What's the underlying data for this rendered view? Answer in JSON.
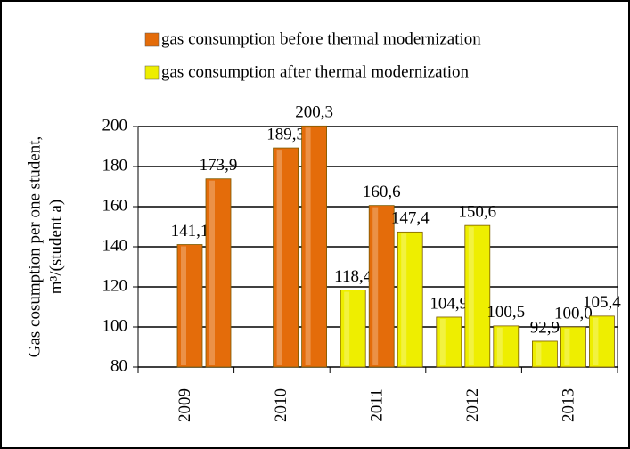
{
  "chart_data": {
    "type": "bar",
    "y_label": [
      "Gas cosumption per one student,",
      "m³/(student a)"
    ],
    "legend": [
      {
        "name": "gas consumption before thermal modernization",
        "color": "#e46c0a"
      },
      {
        "name": "gas consumption after thermal modernization",
        "color": "#eeee00"
      }
    ],
    "categories": [
      "2009",
      "2010",
      "2011",
      "2012",
      "2013"
    ],
    "values": [
      [
        null,
        141.1,
        173.9
      ],
      [
        null,
        189.3,
        200.3
      ],
      [
        118.4,
        160.6,
        147.4
      ],
      [
        104.9,
        150.6,
        100.5
      ],
      [
        92.9,
        100.0,
        105.4
      ]
    ],
    "value_labels": [
      [
        null,
        "141,1",
        "173,9"
      ],
      [
        null,
        "189,3",
        "200,3"
      ],
      [
        "118,4",
        "160,6",
        "147,4"
      ],
      [
        "104,9",
        "150,6",
        "100,5"
      ],
      [
        "92,9",
        "100,0",
        "105,4"
      ]
    ],
    "bar_colors": [
      [
        null,
        "#e46c0a",
        "#e46c0a"
      ],
      [
        null,
        "#e46c0a",
        "#e46c0a"
      ],
      [
        "#eeee00",
        "#e46c0a",
        "#eeee00"
      ],
      [
        "#eeee00",
        "#eeee00",
        "#eeee00"
      ],
      [
        "#eeee00",
        "#eeee00",
        "#eeee00"
      ]
    ],
    "ylim": [
      80,
      200
    ],
    "yticks": [
      80,
      100,
      120,
      140,
      160,
      180,
      200
    ],
    "grid": true
  }
}
